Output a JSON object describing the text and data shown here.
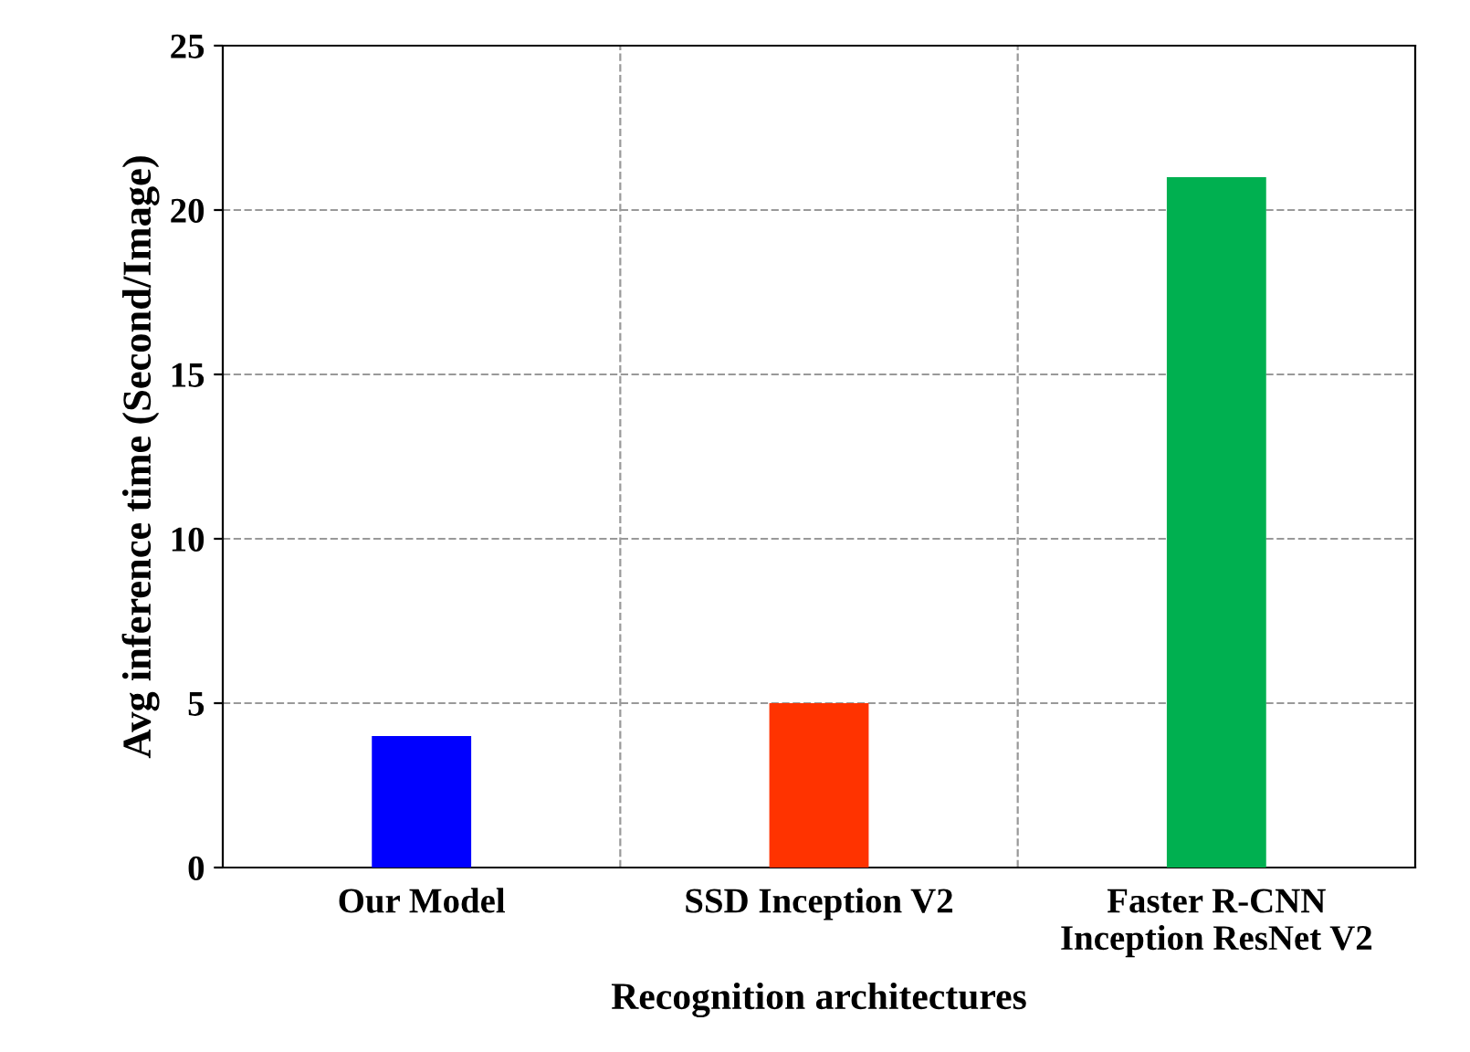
{
  "chart_data": {
    "type": "bar",
    "xlabel": "Recognition architectures",
    "ylabel": "Avg inference time (Second/Image)",
    "categories": [
      "Our Model",
      "SSD Inception V2",
      "Faster R-CNN\nInception ResNet V2"
    ],
    "values": [
      4,
      5,
      21
    ],
    "colors": [
      "#0000ff",
      "#ff3300",
      "#00b050"
    ],
    "ylim": [
      0,
      25
    ],
    "yticks": [
      0,
      5,
      10,
      15,
      20,
      25
    ],
    "grid": true
  }
}
